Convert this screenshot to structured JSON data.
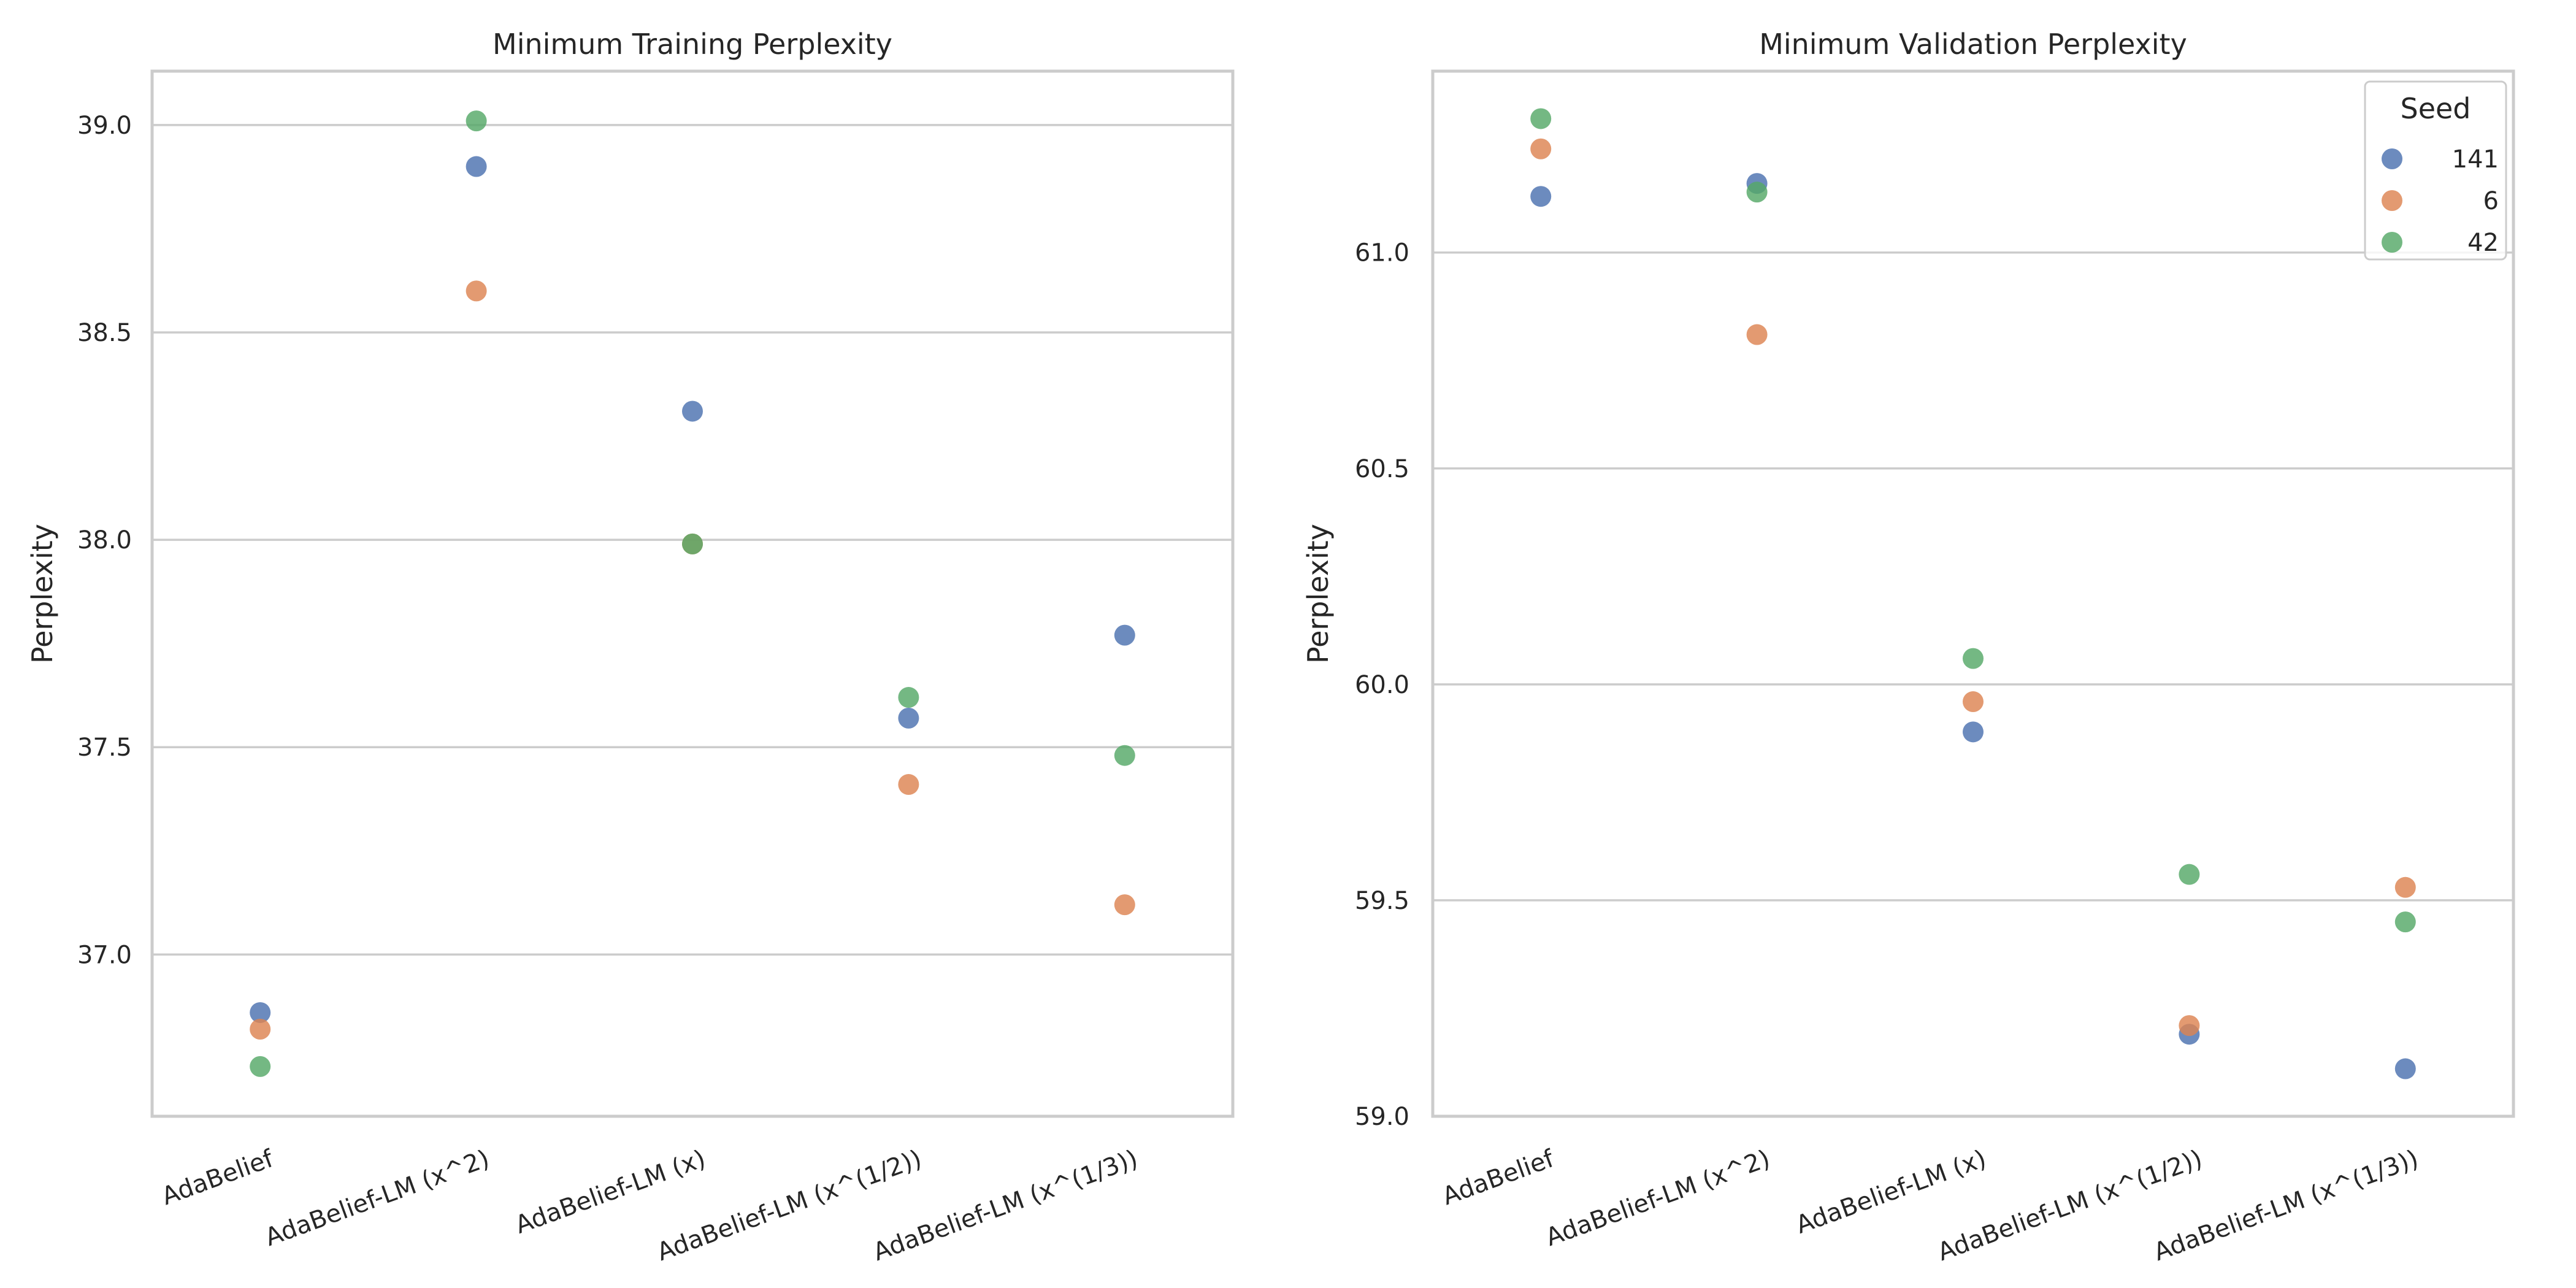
{
  "colors": {
    "141": "#4c72b0",
    "6": "#dd8452",
    "42": "#55a868"
  },
  "legend": {
    "title": "Seed",
    "entries": [
      "141",
      "6",
      "42"
    ],
    "placement": "upper-right"
  },
  "chart_data": [
    {
      "type": "scatter",
      "title": "Minimum Training Perplexity",
      "xlabel": "",
      "ylabel": "Perplexity",
      "categories": [
        "AdaBelief",
        "AdaBelief-LM (x^2)",
        "AdaBelief-LM (x)",
        "AdaBelief-LM (x^(1/2))",
        "AdaBelief-LM (x^(1/3))"
      ],
      "ylim": [
        36.61,
        39.13
      ],
      "yticks": [
        "37.0",
        "37.5",
        "38.0",
        "38.5",
        "39.0"
      ],
      "grid": true,
      "series": [
        {
          "name": "141",
          "values": [
            36.86,
            38.9,
            38.31,
            37.57,
            37.77
          ]
        },
        {
          "name": "6",
          "values": [
            36.82,
            38.6,
            37.99,
            37.41,
            37.12
          ]
        },
        {
          "name": "42",
          "values": [
            36.73,
            39.01,
            37.99,
            37.62,
            37.48
          ]
        }
      ]
    },
    {
      "type": "scatter",
      "title": "Minimum Validation Perplexity",
      "xlabel": "",
      "ylabel": "Perplexity",
      "categories": [
        "AdaBelief",
        "AdaBelief-LM (x^2)",
        "AdaBelief-LM (x)",
        "AdaBelief-LM (x^(1/2))",
        "AdaBelief-LM (x^(1/3))"
      ],
      "ylim": [
        59.0,
        61.42
      ],
      "yticks": [
        "59.0",
        "59.5",
        "60.0",
        "60.5",
        "61.0"
      ],
      "grid": true,
      "series": [
        {
          "name": "141",
          "values": [
            61.13,
            61.16,
            59.89,
            59.19,
            59.11
          ]
        },
        {
          "name": "6",
          "values": [
            61.24,
            60.81,
            59.96,
            59.21,
            59.53
          ]
        },
        {
          "name": "42",
          "values": [
            61.31,
            61.14,
            60.06,
            59.56,
            59.45
          ]
        }
      ]
    }
  ]
}
